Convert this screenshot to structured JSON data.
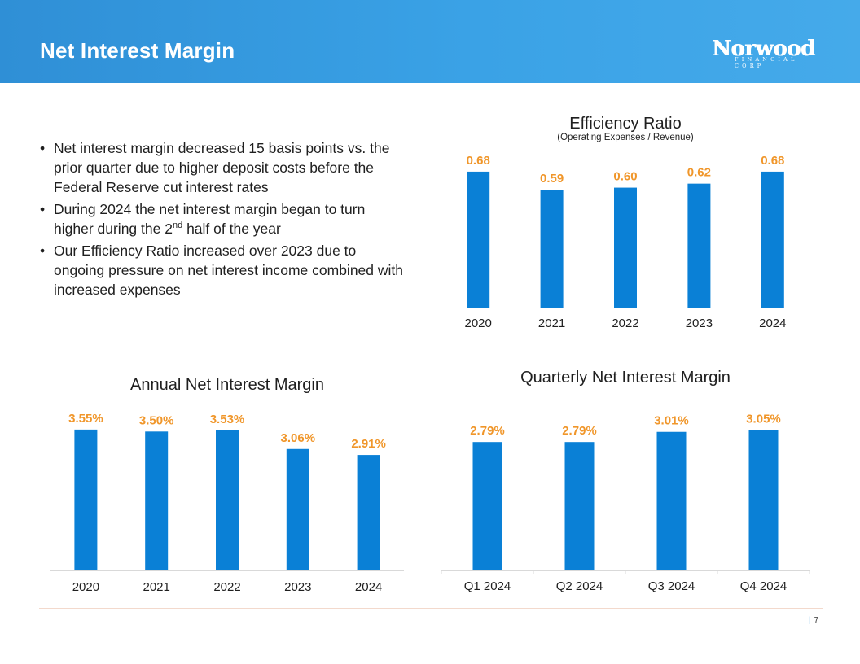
{
  "header": {
    "title": "Net Interest Margin"
  },
  "logo": {
    "name": "Norwood",
    "tagline": "FINANCIAL CORP"
  },
  "bullets": {
    "b1": "Net interest margin decreased 15 basis points vs. the prior quarter due to higher deposit costs before the Federal Reserve cut interest rates",
    "b2_pre": "During 2024 the net interest margin began to turn higher during the 2",
    "b2_sup": "nd",
    "b2_post": " half of the year",
    "b3": "Our Efficiency Ratio increased over 2023 due to ongoing pressure on net interest income combined with increased expenses"
  },
  "colors": {
    "bar": "#0a80d6",
    "value_label": "#f0962a",
    "text": "#1f1f1f",
    "axis": "#d9d9d9"
  },
  "chart_data": [
    {
      "id": "efficiency",
      "type": "bar",
      "title": "Efficiency Ratio",
      "subtitle": "(Operating Expenses / Revenue)",
      "categories": [
        "2020",
        "2021",
        "2022",
        "2023",
        "2024"
      ],
      "values": [
        0.68,
        0.59,
        0.6,
        0.62,
        0.68
      ],
      "labels": [
        "0.68",
        "0.59",
        "0.60",
        "0.62",
        "0.68"
      ],
      "ylim": [
        0,
        0.7
      ],
      "xlabel": "",
      "ylabel": ""
    },
    {
      "id": "annual",
      "type": "bar",
      "title": "Annual Net Interest Margin",
      "subtitle": "",
      "categories": [
        "2020",
        "2021",
        "2022",
        "2023",
        "2024"
      ],
      "values": [
        3.55,
        3.5,
        3.53,
        3.06,
        2.91
      ],
      "labels": [
        "3.55%",
        "3.50%",
        "3.53%",
        "3.06%",
        "2.91%"
      ],
      "ylim": [
        0,
        3.65
      ],
      "xlabel": "",
      "ylabel": ""
    },
    {
      "id": "quarterly",
      "type": "bar",
      "title": "Quarterly Net Interest Margin",
      "subtitle": "",
      "categories": [
        "Q1 2024",
        "Q2 2024",
        "Q3 2024",
        "Q4 2024"
      ],
      "values": [
        2.79,
        2.79,
        3.01,
        3.05
      ],
      "labels": [
        "2.79%",
        "2.79%",
        "3.01%",
        "3.05%"
      ],
      "ylim": [
        0,
        3.2
      ],
      "xlabel": "",
      "ylabel": ""
    }
  ],
  "footer": {
    "page_number": "7"
  }
}
